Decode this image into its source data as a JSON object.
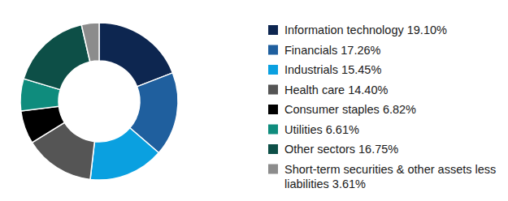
{
  "chart_data": {
    "type": "donut",
    "categories": [
      "Information technology",
      "Financials",
      "Industrials",
      "Health care",
      "Consumer staples",
      "Utilities",
      "Other sectors",
      "Short-term securities & other assets less liabilities"
    ],
    "values": [
      19.1,
      17.26,
      15.45,
      14.4,
      6.82,
      6.61,
      16.75,
      3.61
    ],
    "value_labels": [
      "19.10%",
      "17.26%",
      "15.45%",
      "14.40%",
      "6.82%",
      "6.61%",
      "16.75%",
      "3.61%"
    ],
    "colors": [
      "#0d2650",
      "#1f5f9e",
      "#0aa0e0",
      "#555555",
      "#000000",
      "#0f8c7d",
      "#0d4f47",
      "#8c8c8c"
    ],
    "legend": "right"
  }
}
